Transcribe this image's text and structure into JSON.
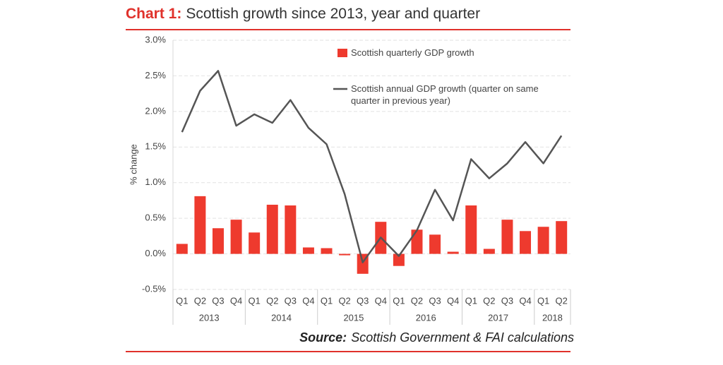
{
  "chart_data": {
    "type": "bar_line",
    "title_label": "Chart 1:",
    "title": "Scottish growth since 2013, year and quarter",
    "source_label": "Source:",
    "source": "Scottish Government & FAI calculations",
    "y_label": "% change",
    "groups": [
      {
        "label": "2013",
        "categories": [
          "Q1",
          "Q2",
          "Q3",
          "Q4"
        ]
      },
      {
        "label": "2014",
        "categories": [
          "Q1",
          "Q2",
          "Q3",
          "Q4"
        ]
      },
      {
        "label": "2015",
        "categories": [
          "Q1",
          "Q2",
          "Q3",
          "Q4"
        ]
      },
      {
        "label": "2016",
        "categories": [
          "Q1",
          "Q2",
          "Q3",
          "Q4"
        ]
      },
      {
        "label": "2017",
        "categories": [
          "Q1",
          "Q2",
          "Q3",
          "Q4"
        ]
      },
      {
        "label": "2018",
        "categories": [
          "Q1",
          "Q2"
        ]
      }
    ],
    "series": [
      {
        "name": "Scottish quarterly GDP growth",
        "type": "bar",
        "color": "#ee3a2e",
        "values": [
          0.14,
          0.81,
          0.36,
          0.48,
          0.3,
          0.69,
          0.68,
          0.09,
          0.08,
          -0.02,
          -0.28,
          0.45,
          -0.17,
          0.34,
          0.27,
          0.03,
          0.68,
          0.07,
          0.48,
          0.32,
          0.38,
          0.46
        ]
      },
      {
        "name": "Scottish annual GDP growth (quarter on same quarter in previous year)",
        "type": "line",
        "color": "#555555",
        "values": [
          1.71,
          2.29,
          2.57,
          1.8,
          1.96,
          1.84,
          2.16,
          1.77,
          1.54,
          0.84,
          -0.12,
          0.23,
          -0.03,
          0.33,
          0.9,
          0.47,
          1.33,
          1.06,
          1.27,
          1.57,
          1.27,
          1.66
        ]
      }
    ],
    "ylim": [
      -0.5,
      3.0
    ],
    "yticks": [
      {
        "value": -0.5,
        "label": "-0.5%"
      },
      {
        "value": 0,
        "label": "0.0%"
      },
      {
        "value": 0.5,
        "label": "0.5%"
      },
      {
        "value": 1.0,
        "label": "1.0%"
      },
      {
        "value": 1.5,
        "label": "1.5%"
      },
      {
        "value": 2.0,
        "label": "2.0%"
      },
      {
        "value": 2.5,
        "label": "2.5%"
      },
      {
        "value": 3.0,
        "label": "3.0%"
      }
    ],
    "grid": true,
    "accent_color": "#e0312b"
  }
}
